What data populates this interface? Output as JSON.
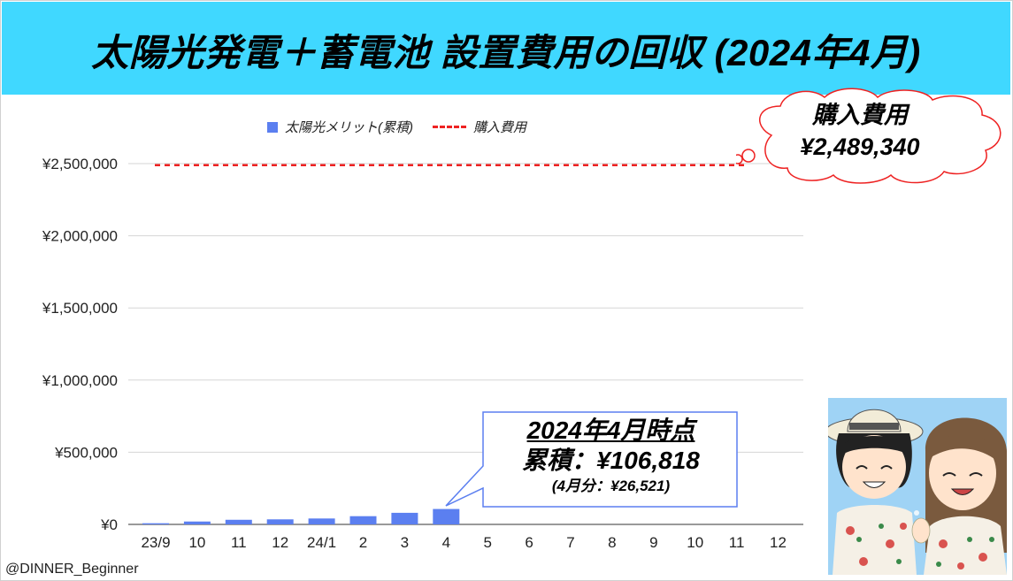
{
  "page": {
    "title": "太陽光発電＋蓄電池 設置費用の回収 (2024年4月)",
    "credit": "@DINNER_Beginner"
  },
  "legend": {
    "bar_label": "太陽光メリット(累積)",
    "line_label": "購入費用"
  },
  "cloud": {
    "line1": "購入費用",
    "line2": "¥2,489,340"
  },
  "callout": {
    "line1": "2024年4月時点",
    "line2": "累積：¥106,818",
    "line3": "(4月分：¥26,521)"
  },
  "colors": {
    "header_bg": "#40d8ff",
    "bar": "#5b7ff0",
    "purchase_line": "#ee2222",
    "callout_border": "#5b7ff0"
  },
  "chart_data": {
    "type": "bar",
    "categories": [
      "23/9",
      "10",
      "11",
      "12",
      "24/1",
      "2",
      "3",
      "4",
      "5",
      "6",
      "7",
      "8",
      "9",
      "10",
      "11",
      "12"
    ],
    "series": [
      {
        "name": "太陽光メリット(累積)",
        "type": "bar",
        "values": [
          8000,
          20000,
          32000,
          35000,
          41000,
          57000,
          80297,
          106818,
          null,
          null,
          null,
          null,
          null,
          null,
          null,
          null
        ]
      },
      {
        "name": "購入費用",
        "type": "line-dashed",
        "values": [
          2489340,
          2489340,
          2489340,
          2489340,
          2489340,
          2489340,
          2489340,
          2489340,
          2489340,
          2489340,
          2489340,
          2489340,
          2489340,
          2489340,
          2489340,
          2489340
        ]
      }
    ],
    "y_ticks": [
      "¥0",
      "¥500,000",
      "¥1,000,000",
      "¥1,500,000",
      "¥2,000,000",
      "¥2,500,000"
    ],
    "ylim": [
      0,
      2500000
    ],
    "grid": true,
    "legend_position": "top"
  }
}
